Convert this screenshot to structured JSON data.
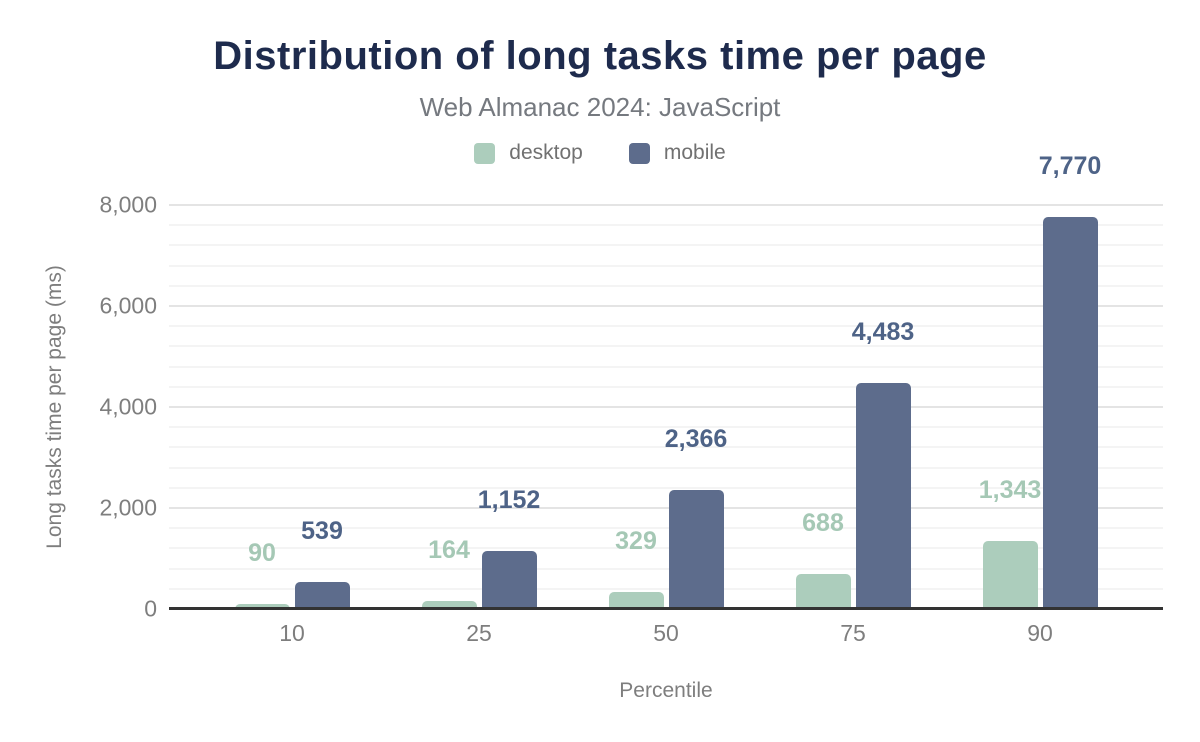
{
  "chart_data": {
    "type": "bar",
    "title": "Distribution of long tasks time per page",
    "subtitle": "Web Almanac 2024: JavaScript",
    "xlabel": "Percentile",
    "ylabel": "Long tasks time per page (ms)",
    "categories": [
      "10",
      "25",
      "50",
      "75",
      "90"
    ],
    "series": [
      {
        "name": "desktop",
        "color": "#accdbc",
        "label_color": "#a5c8b5",
        "values": [
          90,
          164,
          329,
          688,
          1343
        ],
        "labels": [
          "90",
          "164",
          "329",
          "688",
          "1,343"
        ]
      },
      {
        "name": "mobile",
        "color": "#5d6c8c",
        "label_color": "#4e6387",
        "values": [
          539,
          1152,
          2366,
          4483,
          7770
        ],
        "labels": [
          "539",
          "1,152",
          "2,366",
          "4,483",
          "7,770"
        ]
      }
    ],
    "ylim": [
      0,
      8000
    ],
    "yticks": [
      {
        "value": 0,
        "label": "0"
      },
      {
        "value": 2000,
        "label": "2,000"
      },
      {
        "value": 4000,
        "label": "4,000"
      },
      {
        "value": 6000,
        "label": "6,000"
      },
      {
        "value": 8000,
        "label": "8,000"
      }
    ],
    "minor_grid_step": 400,
    "grid": "horizontal",
    "legend_position": "top-center",
    "value_labels_shown": true
  },
  "palette": {
    "background": "#ffffff",
    "title": "#1e2b4d",
    "subtitle": "#75797f",
    "legend_text": "#717171",
    "tick_text": "#7e7e7e",
    "axis_title_text": "#7e7e7e",
    "axis_line": "#333333",
    "grid_major": "#e4e4e4",
    "grid_minor": "#f4f4f4"
  }
}
